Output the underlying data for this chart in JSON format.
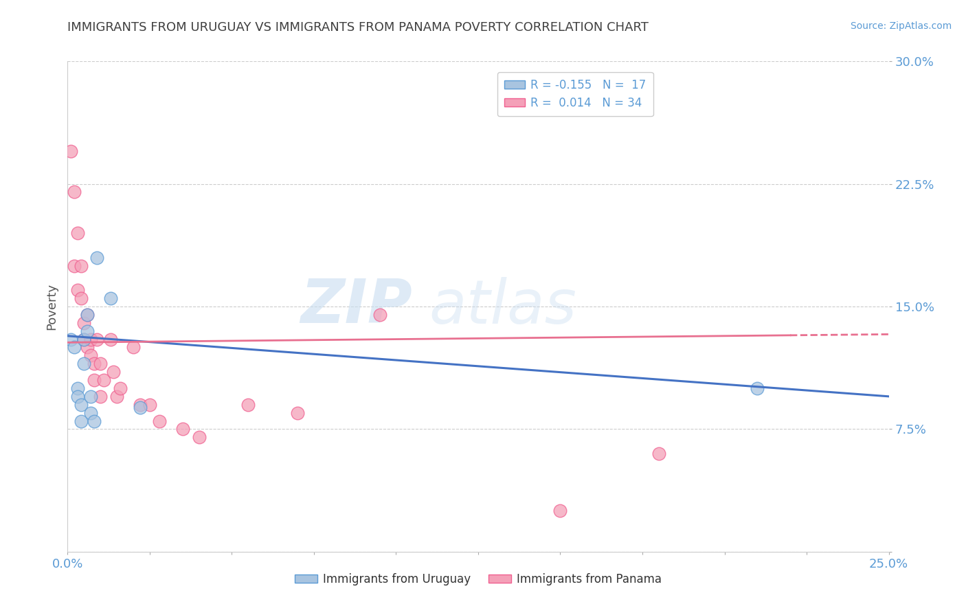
{
  "title": "IMMIGRANTS FROM URUGUAY VS IMMIGRANTS FROM PANAMA POVERTY CORRELATION CHART",
  "source": "Source: ZipAtlas.com",
  "ylabel": "Poverty",
  "xlim": [
    0.0,
    0.25
  ],
  "ylim": [
    0.0,
    0.3
  ],
  "xticks": [
    0.0,
    0.025,
    0.05,
    0.075,
    0.1,
    0.125,
    0.15,
    0.175,
    0.2,
    0.225,
    0.25
  ],
  "xtick_labels": [
    "0.0%",
    "",
    "",
    "",
    "",
    "",
    "",
    "",
    "",
    "",
    "25.0%"
  ],
  "yticks": [
    0.0,
    0.075,
    0.15,
    0.225,
    0.3
  ],
  "ytick_labels": [
    "",
    "7.5%",
    "15.0%",
    "22.5%",
    "30.0%"
  ],
  "legend_blue_label": "R = -0.155   N =  17",
  "legend_pink_label": "R =  0.014   N = 34",
  "legend2_blue": "Immigrants from Uruguay",
  "legend2_pink": "Immigrants from Panama",
  "watermark_zip": "ZIP",
  "watermark_atlas": "atlas",
  "blue_color": "#a8c4e0",
  "pink_color": "#f4a0b8",
  "blue_edge_color": "#5b9bd5",
  "pink_edge_color": "#f06090",
  "blue_line_color": "#4472c4",
  "pink_line_color": "#e87090",
  "title_color": "#404040",
  "axis_label_color": "#555555",
  "tick_color": "#5b9bd5",
  "grid_color": "#cccccc",
  "uruguay_x": [
    0.001,
    0.002,
    0.003,
    0.003,
    0.004,
    0.004,
    0.005,
    0.005,
    0.006,
    0.006,
    0.007,
    0.007,
    0.008,
    0.009,
    0.013,
    0.21,
    0.022
  ],
  "uruguay_y": [
    0.13,
    0.125,
    0.1,
    0.095,
    0.09,
    0.08,
    0.13,
    0.115,
    0.145,
    0.135,
    0.095,
    0.085,
    0.08,
    0.18,
    0.155,
    0.1,
    0.088
  ],
  "panama_x": [
    0.001,
    0.002,
    0.002,
    0.003,
    0.003,
    0.004,
    0.004,
    0.005,
    0.005,
    0.006,
    0.006,
    0.007,
    0.007,
    0.008,
    0.008,
    0.009,
    0.01,
    0.01,
    0.011,
    0.013,
    0.014,
    0.015,
    0.016,
    0.02,
    0.022,
    0.025,
    0.028,
    0.035,
    0.04,
    0.055,
    0.07,
    0.095,
    0.15,
    0.18
  ],
  "panama_y": [
    0.245,
    0.22,
    0.175,
    0.195,
    0.16,
    0.175,
    0.155,
    0.13,
    0.14,
    0.145,
    0.125,
    0.12,
    0.13,
    0.115,
    0.105,
    0.13,
    0.115,
    0.095,
    0.105,
    0.13,
    0.11,
    0.095,
    0.1,
    0.125,
    0.09,
    0.09,
    0.08,
    0.075,
    0.07,
    0.09,
    0.085,
    0.145,
    0.025,
    0.06
  ],
  "blue_trend_start_y": 0.132,
  "blue_trend_end_y": 0.095,
  "pink_trend_start_y": 0.128,
  "pink_trend_solid_end_x": 0.22,
  "pink_trend_end_y": 0.133
}
